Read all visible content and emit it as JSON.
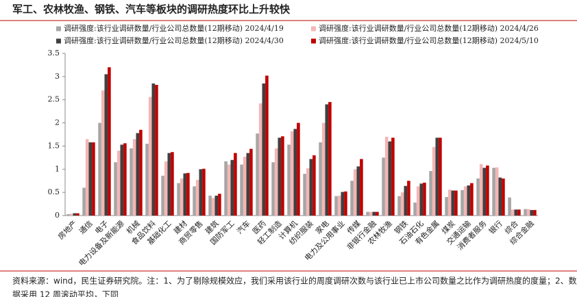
{
  "chart_data": {
    "type": "bar",
    "title": "军工、农林牧渔、钢铁、汽车等板块的调研热度环比上升较快",
    "notes": [
      "资料来源：wind，民生证券研究院。注：1、为了剔除规模效应，我们采用该行业的周度调研次数与该行业已上市公司数量之比作为调研热度的度量；2、数",
      "据采用 12 周滚动平均，下同"
    ],
    "categories": [
      "房地产",
      "通信",
      "电子",
      "电力设备及新能源",
      "机械",
      "食品饮料",
      "基础化工",
      "建材",
      "商贸零售",
      "建筑",
      "国防军工",
      "汽车",
      "医药",
      "轻工制造",
      "计算机",
      "纺织服装",
      "家电",
      "电力及公用事业",
      "传媒",
      "非银行金融",
      "农林牧渔",
      "钢铁",
      "石油石化",
      "有色金属",
      "煤炭",
      "交通运输",
      "消费者服务",
      "银行",
      "综合",
      "综合金融"
    ],
    "series": [
      {
        "name": "调研强度:该行业调研数量/行业公司总数量(12期移动) 2024/4/19",
        "color": "#a6a6a6",
        "values": [
          0.03,
          0.6,
          2.0,
          1.15,
          1.45,
          1.55,
          0.86,
          0.7,
          0.63,
          0.43,
          1.17,
          1.1,
          1.77,
          1.15,
          1.53,
          0.9,
          1.58,
          0.42,
          0.75,
          0.08,
          1.25,
          0.42,
          0.28,
          0.96,
          0.4,
          0.55,
          0.8,
          1.03,
          0.39,
          0.14
        ]
      },
      {
        "name": "调研强度:该行业调研数量/行业公司总数量(12期移动) 2024/4/26",
        "color": "#f4b6b6",
        "values": [
          0.04,
          1.65,
          2.7,
          1.4,
          1.65,
          2.56,
          1.17,
          0.8,
          0.77,
          0.38,
          1.1,
          1.27,
          2.42,
          1.45,
          1.82,
          1.02,
          2.0,
          0.43,
          1.0,
          0.08,
          1.7,
          0.5,
          0.63,
          1.48,
          0.56,
          0.63,
          1.11,
          1.04,
          0.13,
          0.14
        ]
      },
      {
        "name": "调研强度:该行业调研数量/行业公司总数量(12期移动) 2024/4/30",
        "color": "#404040",
        "values": [
          0.05,
          1.58,
          3.05,
          1.53,
          1.78,
          2.85,
          1.35,
          0.91,
          1.0,
          0.43,
          1.2,
          1.35,
          2.85,
          1.68,
          1.87,
          1.22,
          2.4,
          0.51,
          1.06,
          0.08,
          1.6,
          0.64,
          0.69,
          1.68,
          0.54,
          0.65,
          1.03,
          0.82,
          0.13,
          0.12
        ]
      },
      {
        "name": "调研强度:该行业调研数量/行业公司总数量(12期移动) 2024/5/10",
        "color": "#c00000",
        "values": [
          0.05,
          1.58,
          3.2,
          1.56,
          1.85,
          2.82,
          1.37,
          0.92,
          1.01,
          0.47,
          1.35,
          1.44,
          3.02,
          1.71,
          2.0,
          1.3,
          2.45,
          0.52,
          1.22,
          0.08,
          1.68,
          0.75,
          0.71,
          1.68,
          0.54,
          0.7,
          1.08,
          0.8,
          0.13,
          0.12
        ]
      }
    ],
    "ylim": [
      0,
      3.5
    ],
    "yticks": [
      0,
      0.5,
      1,
      1.5,
      2,
      2.5,
      3,
      3.5
    ]
  }
}
